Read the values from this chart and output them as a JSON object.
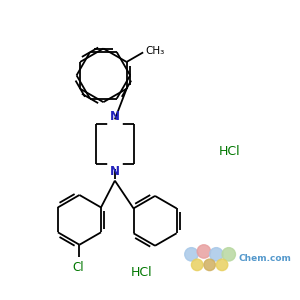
{
  "bg_color": "#ffffff",
  "bond_color": "#000000",
  "nitrogen_color": "#2222bb",
  "chlorine_color": "#007700",
  "line_width": 1.3,
  "ch3_label": "CH₃",
  "n_label": "N",
  "cl_label": "Cl",
  "hcl_label": "HCl",
  "hcl2_label": "HCl",
  "watermark_color": "#5599cc",
  "circle_colors": [
    "#a8c8e8",
    "#e8a0a0",
    "#a8c8e8",
    "#b8d8a0",
    "#e8d060",
    "#d0b060",
    "#e8d060"
  ]
}
